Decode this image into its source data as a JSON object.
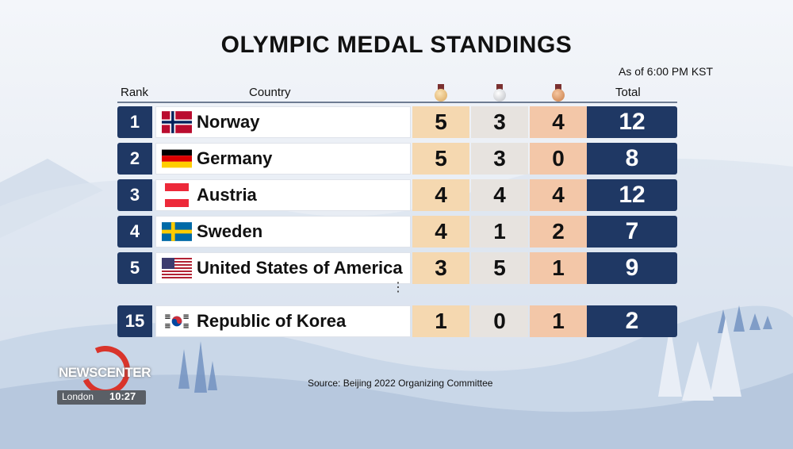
{
  "title": "OLYMPIC MEDAL STANDINGS",
  "as_of": "As of 6:00 PM KST",
  "headers": {
    "rank": "Rank",
    "country": "Country",
    "total": "Total"
  },
  "rows": [
    {
      "rank": "1",
      "country": "Norway",
      "flag": "norway-flag-icon",
      "gold": "5",
      "silver": "3",
      "bronze": "4",
      "total": "12"
    },
    {
      "rank": "2",
      "country": "Germany",
      "flag": "germany-flag-icon",
      "gold": "5",
      "silver": "3",
      "bronze": "0",
      "total": "8"
    },
    {
      "rank": "3",
      "country": "Austria",
      "flag": "austria-flag-icon",
      "gold": "4",
      "silver": "4",
      "bronze": "4",
      "total": "12"
    },
    {
      "rank": "4",
      "country": "Sweden",
      "flag": "sweden-flag-icon",
      "gold": "4",
      "silver": "1",
      "bronze": "2",
      "total": "7"
    },
    {
      "rank": "5",
      "country": "United States of America",
      "flag": "usa-flag-icon",
      "gold": "3",
      "silver": "5",
      "bronze": "1",
      "total": "9"
    },
    {
      "rank": "15",
      "country": "Republic of Korea",
      "flag": "korea-flag-icon",
      "gold": "1",
      "silver": "0",
      "bronze": "1",
      "total": "2"
    }
  ],
  "ellipsis": "⋮",
  "source": "Source: Beijing 2022 Organizing Committee",
  "logo": {
    "news": "NEWS",
    "center": "CENTER",
    "city": "London",
    "time": "10:27"
  },
  "colors": {
    "navy": "#1f3864",
    "gold_cell": "#f5d8b0",
    "silver_cell": "#e7e3df",
    "bronze_cell": "#f3c7a8"
  }
}
